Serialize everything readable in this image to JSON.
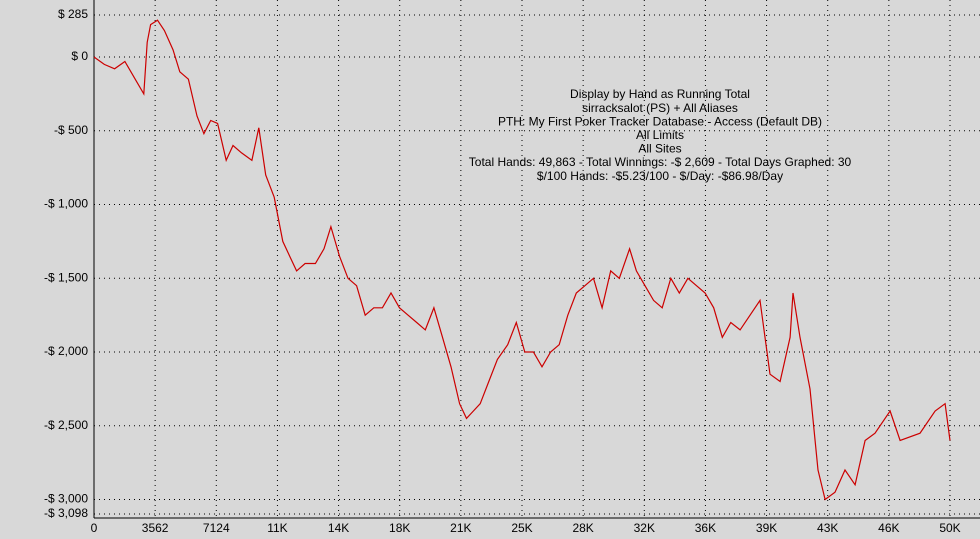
{
  "chart_data": {
    "type": "line",
    "annotations": [
      "Display by Hand as Running Total",
      "sirracksalot (PS) + All Aliases",
      "PTH: My First Poker Tracker Database - Access (Default DB)",
      "All Limits",
      "All Sites",
      "Total Hands: 49,863 - Total Winnings: -$ 2,609 - Total Days Graphed: 30",
      "$/100 Hands: -$5.23/100 - $/Day: -$86.98/Day"
    ],
    "xlim": [
      0,
      49868
    ],
    "ylim": [
      -3098,
      285
    ],
    "xticks": [
      0,
      3562,
      7124,
      {
        "value": 10686,
        "label": "11K"
      },
      {
        "value": 14248,
        "label": "14K"
      },
      {
        "value": 17810,
        "label": "18K"
      },
      {
        "value": 21372,
        "label": "21K"
      },
      {
        "value": 24934,
        "label": "25K"
      },
      {
        "value": 28496,
        "label": "28K"
      },
      {
        "value": 32058,
        "label": "32K"
      },
      {
        "value": 35620,
        "label": "36K"
      },
      {
        "value": 39182,
        "label": "39K"
      },
      {
        "value": 42744,
        "label": "43K"
      },
      {
        "value": 46306,
        "label": "46K"
      },
      {
        "value": 49868,
        "label": "50K"
      }
    ],
    "yticks": [
      {
        "value": 285,
        "label": "$ 285"
      },
      {
        "value": 0,
        "label": "$ 0"
      },
      {
        "value": -500,
        "label": "-$ 500"
      },
      {
        "value": -1000,
        "label": "-$ 1,000"
      },
      {
        "value": -1500,
        "label": "-$ 1,500"
      },
      {
        "value": -2000,
        "label": "-$ 2,000"
      },
      {
        "value": -2500,
        "label": "-$ 2,500"
      },
      {
        "value": -3000,
        "label": "-$ 3,000"
      },
      {
        "value": -3098,
        "label": "-$ 3,098"
      }
    ],
    "grid": true,
    "series": [
      {
        "color": "#cc0000",
        "x": [
          0,
          600,
          1200,
          1800,
          2400,
          2900,
          3100,
          3300,
          3700,
          4100,
          4600,
          5000,
          5500,
          6000,
          6400,
          6800,
          7200,
          7700,
          8100,
          8600,
          9200,
          9600,
          10000,
          10500,
          11000,
          11400,
          11800,
          12300,
          12900,
          13400,
          13800,
          14300,
          14800,
          15300,
          15800,
          16300,
          16800,
          17300,
          17800,
          18300,
          18800,
          19300,
          19800,
          20300,
          20800,
          21300,
          21700,
          22100,
          22500,
          23000,
          23500,
          24100,
          24600,
          25100,
          25600,
          26100,
          26600,
          27100,
          27600,
          28100,
          28600,
          29100,
          29600,
          30100,
          30600,
          31200,
          31600,
          32100,
          32600,
          33100,
          33600,
          34100,
          34600,
          35100,
          35600,
          36100,
          36600,
          37100,
          37640,
          38800,
          39380,
          39970,
          40550,
          40720,
          41130,
          41710,
          42180,
          42590,
          43170,
          43750,
          44340,
          44920,
          45500,
          46380,
          46960,
          48120,
          49000,
          49580,
          49868
        ],
        "values": [
          0,
          -50,
          -80,
          -30,
          -150,
          -250,
          100,
          220,
          250,
          180,
          50,
          -100,
          -150,
          -400,
          -520,
          -430,
          -450,
          -700,
          -600,
          -650,
          -700,
          -480,
          -800,
          -950,
          -1250,
          -1350,
          -1450,
          -1400,
          -1400,
          -1300,
          -1150,
          -1350,
          -1500,
          -1550,
          -1750,
          -1700,
          -1700,
          -1600,
          -1700,
          -1750,
          -1800,
          -1850,
          -1700,
          -1900,
          -2100,
          -2350,
          -2450,
          -2400,
          -2350,
          -2200,
          -2050,
          -1950,
          -1800,
          -2000,
          -2000,
          -2100,
          -2000,
          -1950,
          -1750,
          -1600,
          -1550,
          -1500,
          -1700,
          -1450,
          -1500,
          -1300,
          -1450,
          -1550,
          -1650,
          -1700,
          -1500,
          -1600,
          -1500,
          -1550,
          -1600,
          -1700,
          -1900,
          -1800,
          -1850,
          -1650,
          -2150,
          -2200,
          -1900,
          -1600,
          -1900,
          -2250,
          -2800,
          -3000,
          -2950,
          -2800,
          -2900,
          -2600,
          -2550,
          -2400,
          -2600,
          -2550,
          -2400,
          -2350,
          -2600
        ]
      }
    ]
  }
}
